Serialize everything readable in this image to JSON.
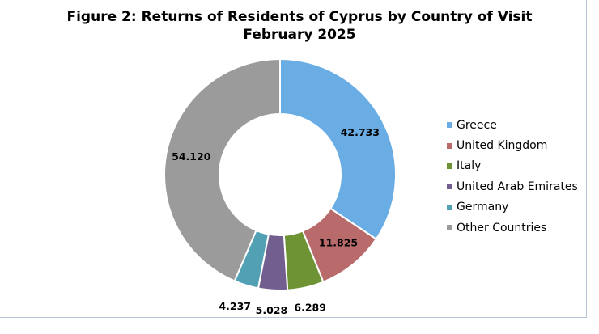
{
  "chart_data": {
    "type": "pie",
    "donut": true,
    "title": "Figure 2: Returns of Residents of Cyprus by Country of Visit",
    "subtitle": "February 2025",
    "categories": [
      "Greece",
      "United Kingdom",
      "Italy",
      "United Arab Emirates",
      "Germany",
      "Other Countries"
    ],
    "values": [
      42733,
      11825,
      6289,
      5028,
      4237,
      54120
    ],
    "data_labels": [
      "42.733",
      "11.825",
      "6.289",
      "5.028",
      "4.237",
      "54.120"
    ],
    "colors": [
      "#6aade4",
      "#b96b6b",
      "#6e9335",
      "#725f8f",
      "#52a0b4",
      "#9b9b9b"
    ],
    "legend_position": "right"
  }
}
